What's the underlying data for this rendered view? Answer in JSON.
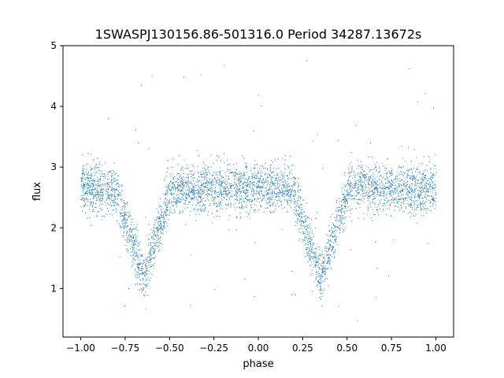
{
  "chart_data": {
    "type": "scatter",
    "title": "1SWASPJ130156.86-501316.0 Period 34287.13672s",
    "xlabel": "phase",
    "ylabel": "flux",
    "xlim": [
      -1.1,
      1.1
    ],
    "ylim": [
      0.2,
      5.0
    ],
    "xticks": [
      -1.0,
      -0.75,
      -0.5,
      -0.25,
      0.0,
      0.25,
      0.5,
      0.75,
      1.0
    ],
    "xtick_labels": [
      "−1.00",
      "−0.75",
      "−0.50",
      "−0.25",
      "0.00",
      "0.25",
      "0.50",
      "0.75",
      "1.00"
    ],
    "yticks": [
      1,
      2,
      3,
      4,
      5
    ],
    "ytick_labels": [
      "1",
      "2",
      "3",
      "4",
      "5"
    ],
    "grid": false,
    "legend": "none",
    "point_color": "#1f77b4",
    "light_curve": {
      "baseline_flux": 2.65,
      "scatter_sigma": 0.2,
      "eclipses": [
        {
          "phase_center": -0.65,
          "min_flux": 1.2
        },
        {
          "phase_center": 0.35,
          "min_flux": 1.2
        }
      ],
      "eclipse_half_width_phase": 0.16,
      "outlier_flux_range": [
        0.4,
        4.8
      ]
    }
  }
}
